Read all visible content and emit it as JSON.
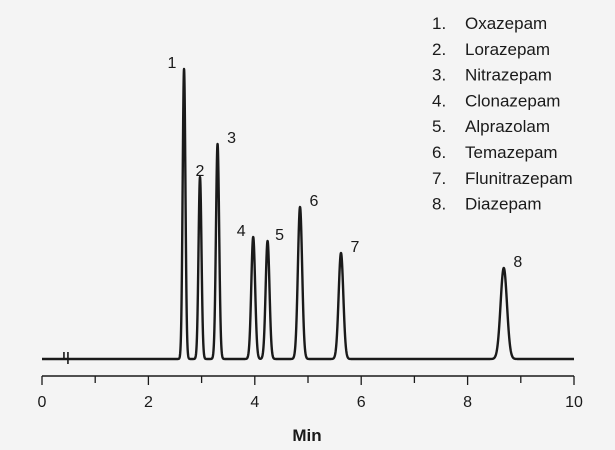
{
  "chart_data": {
    "type": "line",
    "title": "",
    "xlabel": "Min",
    "ylabel": "",
    "xlim": [
      0,
      10
    ],
    "xticks": [
      "0",
      "2",
      "4",
      "6",
      "8",
      "10"
    ],
    "grid": false,
    "legend_position": "top-right",
    "injection_marker_min": 0.45,
    "baseline": 0,
    "series": [
      {
        "peaks": [
          {
            "label": "1",
            "name": "Oxazepam",
            "rt": 2.67,
            "height": 290,
            "width": 0.026
          },
          {
            "label": "2",
            "name": "Lorazepam",
            "rt": 2.97,
            "height": 182,
            "width": 0.028
          },
          {
            "label": "3",
            "name": "Nitrazepam",
            "rt": 3.3,
            "height": 215,
            "width": 0.03
          },
          {
            "label": "4",
            "name": "Clonazepam",
            "rt": 3.97,
            "height": 122,
            "width": 0.036
          },
          {
            "label": "5",
            "name": "Alprazolam",
            "rt": 4.24,
            "height": 118,
            "width": 0.036
          },
          {
            "label": "6",
            "name": "Temazepam",
            "rt": 4.85,
            "height": 152,
            "width": 0.04
          },
          {
            "label": "7",
            "name": "Flunitrazepam",
            "rt": 5.62,
            "height": 106,
            "width": 0.044
          },
          {
            "label": "8",
            "name": "Diazepam",
            "rt": 8.68,
            "height": 91,
            "width": 0.06
          }
        ]
      }
    ]
  }
}
